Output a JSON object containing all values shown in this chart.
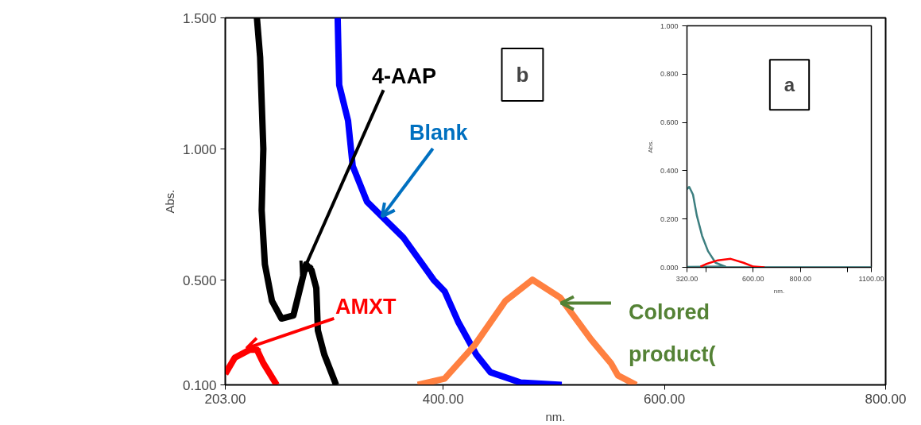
{
  "chart_data": [
    {
      "type": "line",
      "xlabel": "nm.",
      "ylabel": "Abs.",
      "annotations": [
        {
          "text": "4-AAP",
          "x": 272.0,
          "y": 0.52
        },
        {
          "text": "Blank",
          "x": 344.7,
          "y": 0.742
        },
        {
          "text": "AMXT",
          "x": 222.3,
          "y": 0.24
        },
        {
          "text": "Colored product(",
          "x": 506.5,
          "y": 0.412
        },
        "b"
      ],
      "xlim": [
        203,
        800
      ],
      "ylim": [
        0.1,
        1.5
      ],
      "xticks": [
        {
          "value": 203,
          "label": "203.00"
        },
        {
          "value": 400,
          "label": "400.00"
        },
        {
          "value": 600,
          "label": "600.00"
        },
        {
          "value": 800,
          "label": "800.00"
        }
      ],
      "yticks": [
        {
          "value": 0.1,
          "label": "0.100"
        },
        {
          "value": 0.5,
          "label": "0.500"
        },
        {
          "value": 1.0,
          "label": "1.000"
        },
        {
          "value": 1.5,
          "label": "1.500"
        }
      ],
      "series": [
        {
          "color": "#000000",
          "x": [
            231.6,
            234.5,
            237.4,
            235.9,
            238.8,
            245.2,
            253.8,
            264.6,
            276.0,
            281.0,
            285.3,
            286.7,
            292.5,
            303.2
          ],
          "values": [
            1.5,
            1.35,
            1.0,
            0.766,
            0.56,
            0.42,
            0.353,
            0.365,
            0.56,
            0.537,
            0.469,
            0.308,
            0.216,
            0.1
          ]
        },
        {
          "color": "#0000ff",
          "x": [
            304.6,
            306,
            314,
            318.2,
            331.1,
            344.7,
            364,
            391.3,
            401.3,
            413.5,
            429.9,
            442.8,
            470,
            507.2
          ],
          "values": [
            1.5,
            1.244,
            1.108,
            0.935,
            0.799,
            0.742,
            0.662,
            0.501,
            0.457,
            0.341,
            0.216,
            0.148,
            0.109,
            0.1
          ]
        },
        {
          "color": "#ff0000",
          "x": [
            203,
            211.6,
            225.2,
            231.6,
            237.4,
            249.5
          ],
          "values": [
            0.142,
            0.204,
            0.234,
            0.234,
            0.183,
            0.1
          ]
        },
        {
          "color": "#ff8040",
          "x": [
            377,
            401.3,
            428.5,
            456.4,
            480.7,
            505.8,
            533.7,
            551.6,
            558,
            574.5
          ],
          "values": [
            0.1,
            0.124,
            0.252,
            0.421,
            0.501,
            0.433,
            0.273,
            0.183,
            0.136,
            0.1
          ]
        }
      ]
    },
    {
      "type": "line",
      "xlabel": "nm.",
      "ylabel": "Abs.",
      "annotations": [
        "a"
      ],
      "xlim": [
        320,
        1100
      ],
      "ylim": [
        0,
        1.0
      ],
      "xticks": [
        {
          "value": 320,
          "label": "320.00"
        },
        {
          "value": 400,
          "label": null
        },
        {
          "value": 600,
          "label": "600.00"
        },
        {
          "value": 800,
          "label": "800.00"
        },
        {
          "value": 1000,
          "label": null
        },
        {
          "value": 1100,
          "label": "1100.00"
        }
      ],
      "yticks": [
        {
          "value": 0,
          "label": "0.000"
        },
        {
          "value": 0.2,
          "label": "0.200"
        },
        {
          "value": 0.4,
          "label": "0.400"
        },
        {
          "value": 0.6,
          "label": "0.600"
        },
        {
          "value": 0.8,
          "label": "0.800"
        },
        {
          "value": 1.0,
          "label": "1.000"
        }
      ],
      "series": [
        {
          "color": "#3d7f80",
          "x": [
            320,
            329.6,
            345.5,
            361.5,
            383.8,
            409,
            441,
            482.7,
            null,
            1037,
            1100
          ],
          "values": [
            0.324,
            0.333,
            0.301,
            0.215,
            0.131,
            0.067,
            0.019,
            0.003,
            null,
            0,
            0
          ]
        },
        {
          "color": "#ff0000",
          "x": [
            377,
            399.7,
            450.8,
            505,
            559,
            600.7,
            648.5
          ],
          "values": [
            0.003,
            0.013,
            0.029,
            0.035,
            0.019,
            0.003,
            0
          ]
        }
      ]
    }
  ]
}
